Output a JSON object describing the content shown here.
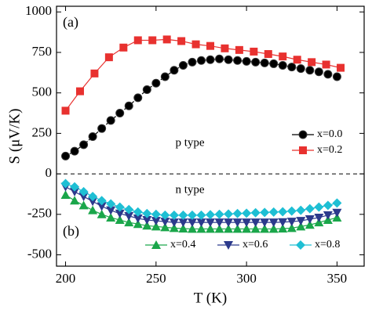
{
  "chart_data": {
    "type": "line",
    "xlabel": "T (K)",
    "ylabel": "S (μV/K)",
    "annotations": [
      "(a)",
      "(b)",
      "p type",
      "n type"
    ],
    "xlim": [
      195,
      365
    ],
    "ylim": [
      -570,
      1035
    ],
    "xticks": [
      200,
      250,
      300,
      350
    ],
    "yticks": [
      1000,
      750,
      500,
      250,
      0,
      -250,
      -500
    ],
    "series": [
      {
        "name": "x=0.0",
        "color": "#000000",
        "marker": "circle",
        "x": [
          200,
          205,
          210,
          215,
          220,
          225,
          230,
          235,
          240,
          245,
          250,
          255,
          260,
          265,
          270,
          275,
          280,
          285,
          290,
          295,
          300,
          305,
          310,
          315,
          320,
          325,
          330,
          335,
          340,
          345,
          350
        ],
        "values": [
          110,
          140,
          180,
          230,
          280,
          330,
          375,
          420,
          470,
          520,
          560,
          600,
          640,
          670,
          690,
          700,
          705,
          710,
          705,
          700,
          695,
          690,
          685,
          680,
          670,
          660,
          650,
          640,
          630,
          615,
          600
        ]
      },
      {
        "name": "x=0.2",
        "color": "#e8312f",
        "marker": "square",
        "x": [
          200,
          208,
          216,
          224,
          232,
          240,
          248,
          256,
          264,
          272,
          280,
          288,
          296,
          304,
          312,
          320,
          328,
          336,
          344,
          352
        ],
        "values": [
          390,
          510,
          620,
          720,
          780,
          825,
          825,
          830,
          820,
          800,
          790,
          775,
          765,
          755,
          740,
          725,
          705,
          690,
          675,
          655
        ]
      },
      {
        "name": "x=0.4",
        "color": "#1aa64a",
        "marker": "triangle-up",
        "x": [
          200,
          205,
          210,
          215,
          220,
          225,
          230,
          235,
          240,
          245,
          250,
          255,
          260,
          265,
          270,
          275,
          280,
          285,
          290,
          295,
          300,
          305,
          310,
          315,
          320,
          325,
          330,
          335,
          340,
          345,
          350
        ],
        "values": [
          -130,
          -165,
          -195,
          -225,
          -250,
          -270,
          -285,
          -300,
          -310,
          -320,
          -325,
          -330,
          -335,
          -338,
          -340,
          -340,
          -340,
          -340,
          -340,
          -340,
          -340,
          -340,
          -340,
          -340,
          -338,
          -335,
          -325,
          -315,
          -300,
          -285,
          -270
        ]
      },
      {
        "name": "x=0.6",
        "color": "#2c3a8c",
        "marker": "triangle-down",
        "x": [
          200,
          205,
          210,
          215,
          220,
          225,
          230,
          235,
          240,
          245,
          250,
          255,
          260,
          265,
          270,
          275,
          280,
          285,
          290,
          295,
          300,
          305,
          310,
          315,
          320,
          325,
          330,
          335,
          340,
          345,
          350
        ],
        "values": [
          -80,
          -110,
          -140,
          -170,
          -200,
          -225,
          -245,
          -260,
          -275,
          -285,
          -290,
          -295,
          -300,
          -300,
          -300,
          -300,
          -300,
          -300,
          -300,
          -300,
          -300,
          -300,
          -300,
          -300,
          -298,
          -295,
          -290,
          -280,
          -270,
          -255,
          -240
        ]
      },
      {
        "name": "x=0.8",
        "color": "#1ebfd4",
        "marker": "diamond",
        "x": [
          200,
          205,
          210,
          215,
          220,
          225,
          230,
          235,
          240,
          245,
          250,
          255,
          260,
          265,
          270,
          275,
          280,
          285,
          290,
          295,
          300,
          305,
          310,
          315,
          320,
          325,
          330,
          335,
          340,
          345,
          350
        ],
        "values": [
          -60,
          -80,
          -110,
          -140,
          -165,
          -185,
          -205,
          -220,
          -235,
          -245,
          -250,
          -255,
          -255,
          -255,
          -255,
          -255,
          -252,
          -250,
          -248,
          -245,
          -243,
          -240,
          -238,
          -236,
          -234,
          -230,
          -225,
          -215,
          -205,
          -195,
          -180
        ]
      }
    ]
  }
}
